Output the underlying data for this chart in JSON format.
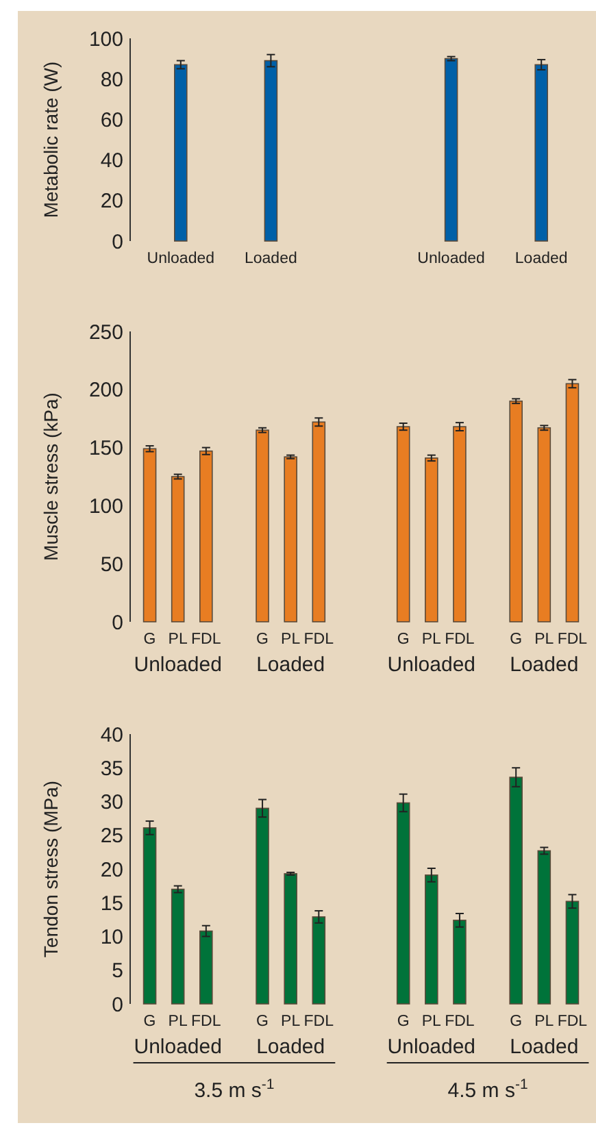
{
  "chart_data": [
    {
      "type": "bar",
      "ylabel": "Metabolic rate (W)",
      "categories": [
        "Unloaded",
        "Loaded",
        null,
        "Unloaded",
        "Loaded"
      ],
      "values": [
        87,
        89,
        null,
        90,
        87
      ],
      "errors": [
        2,
        3,
        null,
        1,
        2.5
      ],
      "color": "#0060a8",
      "ylim": [
        0,
        100
      ],
      "yticks": [
        0,
        20,
        40,
        60,
        80,
        100
      ]
    },
    {
      "type": "bar",
      "ylabel": "Muscle stress (kPa)",
      "categories": [
        "G",
        "PL",
        "FDL",
        null,
        "G",
        "PL",
        "FDL",
        null,
        null,
        "G",
        "PL",
        "FDL",
        null,
        "G",
        "PL",
        "FDL"
      ],
      "values": [
        149,
        125,
        147,
        null,
        165,
        142,
        172,
        null,
        null,
        168,
        141,
        168,
        null,
        190,
        167,
        205
      ],
      "errors": [
        2.5,
        2,
        3,
        null,
        2,
        1.5,
        3.5,
        null,
        null,
        3,
        2.5,
        3.5,
        null,
        2,
        2,
        3.5
      ],
      "color": "#e87d22",
      "ylim": [
        0,
        250
      ],
      "yticks": [
        0,
        50,
        100,
        150,
        200,
        250
      ],
      "annotations": [
        "Unloaded",
        "Loaded",
        "Unloaded",
        "Loaded"
      ]
    },
    {
      "type": "bar",
      "ylabel": "Tendon stress (MPa)",
      "categories": [
        "G",
        "PL",
        "FDL",
        null,
        "G",
        "PL",
        "FDL",
        null,
        null,
        "G",
        "PL",
        "FDL",
        null,
        "G",
        "PL",
        "FDL"
      ],
      "values": [
        26.1,
        17,
        10.8,
        null,
        29,
        19.3,
        12.9,
        null,
        null,
        29.8,
        19.1,
        12.4,
        null,
        33.6,
        22.7,
        15.2
      ],
      "errors": [
        1,
        0.5,
        0.8,
        null,
        1.3,
        0.2,
        0.9,
        null,
        null,
        1.3,
        1,
        1,
        null,
        1.4,
        0.5,
        1
      ],
      "color": "#00733a",
      "ylim": [
        0,
        40
      ],
      "yticks": [
        0,
        5,
        10,
        15,
        20,
        25,
        30,
        35,
        40
      ],
      "annotations": [
        "Unloaded",
        "Loaded",
        "Unloaded",
        "Loaded",
        "3.5 m s$^{-1}$",
        "4.5 m s$^{-1}$"
      ]
    }
  ]
}
